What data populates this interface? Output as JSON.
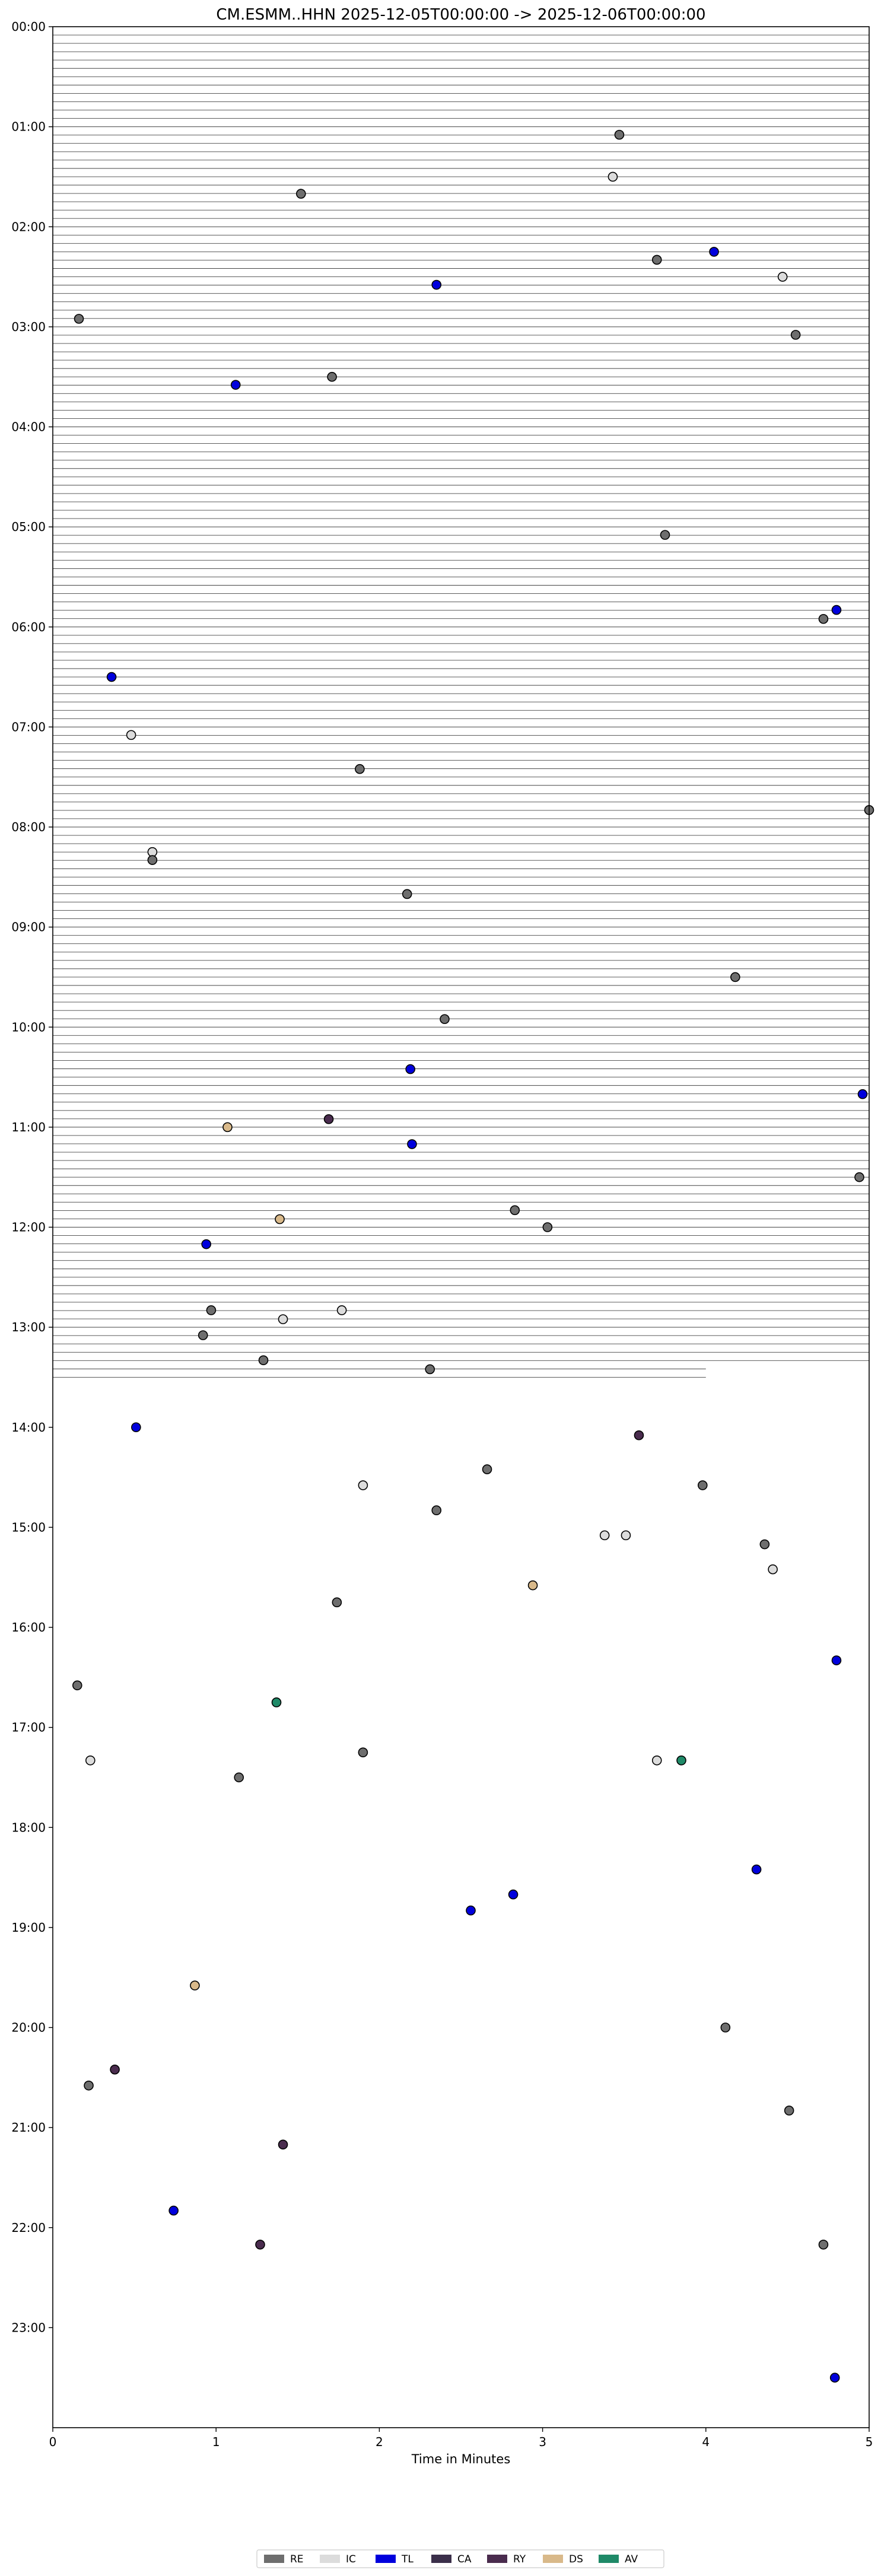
{
  "chart_data": {
    "type": "scatter",
    "title": "CM.ESMM..HHN  2025-12-05T00:00:00 -> 2025-12-06T00:00:00",
    "xlabel": "Time in Minutes",
    "ylabel": "",
    "xlim": [
      0,
      5
    ],
    "ylim_hours": [
      0,
      24
    ],
    "x_ticks": [
      "0",
      "1",
      "2",
      "3",
      "4",
      "5"
    ],
    "y_ticks": [
      "00:00",
      "01:00",
      "02:00",
      "03:00",
      "04:00",
      "05:00",
      "06:00",
      "07:00",
      "08:00",
      "09:00",
      "10:00",
      "11:00",
      "12:00",
      "13:00",
      "14:00",
      "15:00",
      "16:00",
      "17:00",
      "18:00",
      "19:00",
      "20:00",
      "21:00",
      "22:00",
      "23:00"
    ],
    "trace_interval_minutes": 5,
    "traces_end_hour": 13.5,
    "legend_position": "bottom-center",
    "legend": [
      {
        "code": "RE",
        "color": "#6e6e6e"
      },
      {
        "code": "IC",
        "color": "#dcdcdc"
      },
      {
        "code": "TL",
        "color": "#0000dd"
      },
      {
        "code": "CA",
        "color": "#3b2f4a"
      },
      {
        "code": "RY",
        "color": "#4a2c4e"
      },
      {
        "code": "DS",
        "color": "#d9b98a"
      },
      {
        "code": "AV",
        "color": "#1f8a68"
      }
    ],
    "events": [
      {
        "type": "RE",
        "x": 3.47,
        "y": 1.08
      },
      {
        "type": "IC",
        "x": 3.43,
        "y": 1.5
      },
      {
        "type": "RE",
        "x": 1.52,
        "y": 1.67
      },
      {
        "type": "TL",
        "x": 4.05,
        "y": 2.25
      },
      {
        "type": "RE",
        "x": 3.7,
        "y": 2.33
      },
      {
        "type": "IC",
        "x": 4.47,
        "y": 2.5
      },
      {
        "type": "TL",
        "x": 2.35,
        "y": 2.58
      },
      {
        "type": "RE",
        "x": 0.16,
        "y": 2.92
      },
      {
        "type": "RE",
        "x": 4.55,
        "y": 3.08
      },
      {
        "type": "RE",
        "x": 1.71,
        "y": 3.5
      },
      {
        "type": "TL",
        "x": 1.12,
        "y": 3.58
      },
      {
        "type": "RE",
        "x": 3.75,
        "y": 5.08
      },
      {
        "type": "TL",
        "x": 4.8,
        "y": 5.83
      },
      {
        "type": "RE",
        "x": 4.72,
        "y": 5.92
      },
      {
        "type": "TL",
        "x": 0.36,
        "y": 6.5
      },
      {
        "type": "IC",
        "x": 0.48,
        "y": 7.08
      },
      {
        "type": "RE",
        "x": 1.88,
        "y": 7.42
      },
      {
        "type": "RE",
        "x": 5.0,
        "y": 7.83
      },
      {
        "type": "IC",
        "x": 0.61,
        "y": 8.25
      },
      {
        "type": "RE",
        "x": 0.61,
        "y": 8.33
      },
      {
        "type": "RE",
        "x": 2.17,
        "y": 8.67
      },
      {
        "type": "RE",
        "x": 4.18,
        "y": 9.5
      },
      {
        "type": "RE",
        "x": 2.4,
        "y": 9.92
      },
      {
        "type": "TL",
        "x": 2.19,
        "y": 10.42
      },
      {
        "type": "TL",
        "x": 4.96,
        "y": 10.67
      },
      {
        "type": "RY",
        "x": 1.69,
        "y": 10.92
      },
      {
        "type": "DS",
        "x": 1.07,
        "y": 11.0
      },
      {
        "type": "TL",
        "x": 2.2,
        "y": 11.17
      },
      {
        "type": "RE",
        "x": 4.94,
        "y": 11.5
      },
      {
        "type": "RE",
        "x": 2.83,
        "y": 11.83
      },
      {
        "type": "DS",
        "x": 1.39,
        "y": 11.92
      },
      {
        "type": "RE",
        "x": 3.03,
        "y": 12.0
      },
      {
        "type": "TL",
        "x": 0.94,
        "y": 12.17
      },
      {
        "type": "RE",
        "x": 0.97,
        "y": 12.83
      },
      {
        "type": "IC",
        "x": 1.77,
        "y": 12.83
      },
      {
        "type": "IC",
        "x": 1.41,
        "y": 12.92
      },
      {
        "type": "RE",
        "x": 0.92,
        "y": 13.08
      },
      {
        "type": "RE",
        "x": 1.29,
        "y": 13.33
      },
      {
        "type": "RE",
        "x": 2.31,
        "y": 13.42
      },
      {
        "type": "TL",
        "x": 0.51,
        "y": 14.0
      },
      {
        "type": "RY",
        "x": 3.59,
        "y": 14.08
      },
      {
        "type": "RE",
        "x": 2.66,
        "y": 14.42
      },
      {
        "type": "IC",
        "x": 1.9,
        "y": 14.58
      },
      {
        "type": "RE",
        "x": 3.98,
        "y": 14.58
      },
      {
        "type": "RE",
        "x": 2.35,
        "y": 14.83
      },
      {
        "type": "IC",
        "x": 3.38,
        "y": 15.08
      },
      {
        "type": "IC",
        "x": 3.51,
        "y": 15.08
      },
      {
        "type": "RE",
        "x": 4.36,
        "y": 15.17
      },
      {
        "type": "IC",
        "x": 4.41,
        "y": 15.42
      },
      {
        "type": "DS",
        "x": 2.94,
        "y": 15.58
      },
      {
        "type": "RE",
        "x": 1.74,
        "y": 15.75
      },
      {
        "type": "TL",
        "x": 4.8,
        "y": 16.33
      },
      {
        "type": "RE",
        "x": 0.15,
        "y": 16.58
      },
      {
        "type": "AV",
        "x": 1.37,
        "y": 16.75
      },
      {
        "type": "RE",
        "x": 1.9,
        "y": 17.25
      },
      {
        "type": "IC",
        "x": 0.23,
        "y": 17.33
      },
      {
        "type": "IC",
        "x": 3.7,
        "y": 17.33
      },
      {
        "type": "AV",
        "x": 3.85,
        "y": 17.33
      },
      {
        "type": "RE",
        "x": 1.14,
        "y": 17.5
      },
      {
        "type": "TL",
        "x": 4.31,
        "y": 18.42
      },
      {
        "type": "TL",
        "x": 2.82,
        "y": 18.67
      },
      {
        "type": "TL",
        "x": 2.56,
        "y": 18.83
      },
      {
        "type": "DS",
        "x": 0.87,
        "y": 19.58
      },
      {
        "type": "RE",
        "x": 4.12,
        "y": 20.0
      },
      {
        "type": "RY",
        "x": 0.38,
        "y": 20.42
      },
      {
        "type": "RE",
        "x": 0.22,
        "y": 20.58
      },
      {
        "type": "RE",
        "x": 4.51,
        "y": 20.83
      },
      {
        "type": "RY",
        "x": 1.41,
        "y": 21.17
      },
      {
        "type": "TL",
        "x": 0.74,
        "y": 21.83
      },
      {
        "type": "RY",
        "x": 1.27,
        "y": 22.17
      },
      {
        "type": "RE",
        "x": 4.72,
        "y": 22.17
      },
      {
        "type": "TL",
        "x": 4.79,
        "y": 23.5
      }
    ]
  }
}
